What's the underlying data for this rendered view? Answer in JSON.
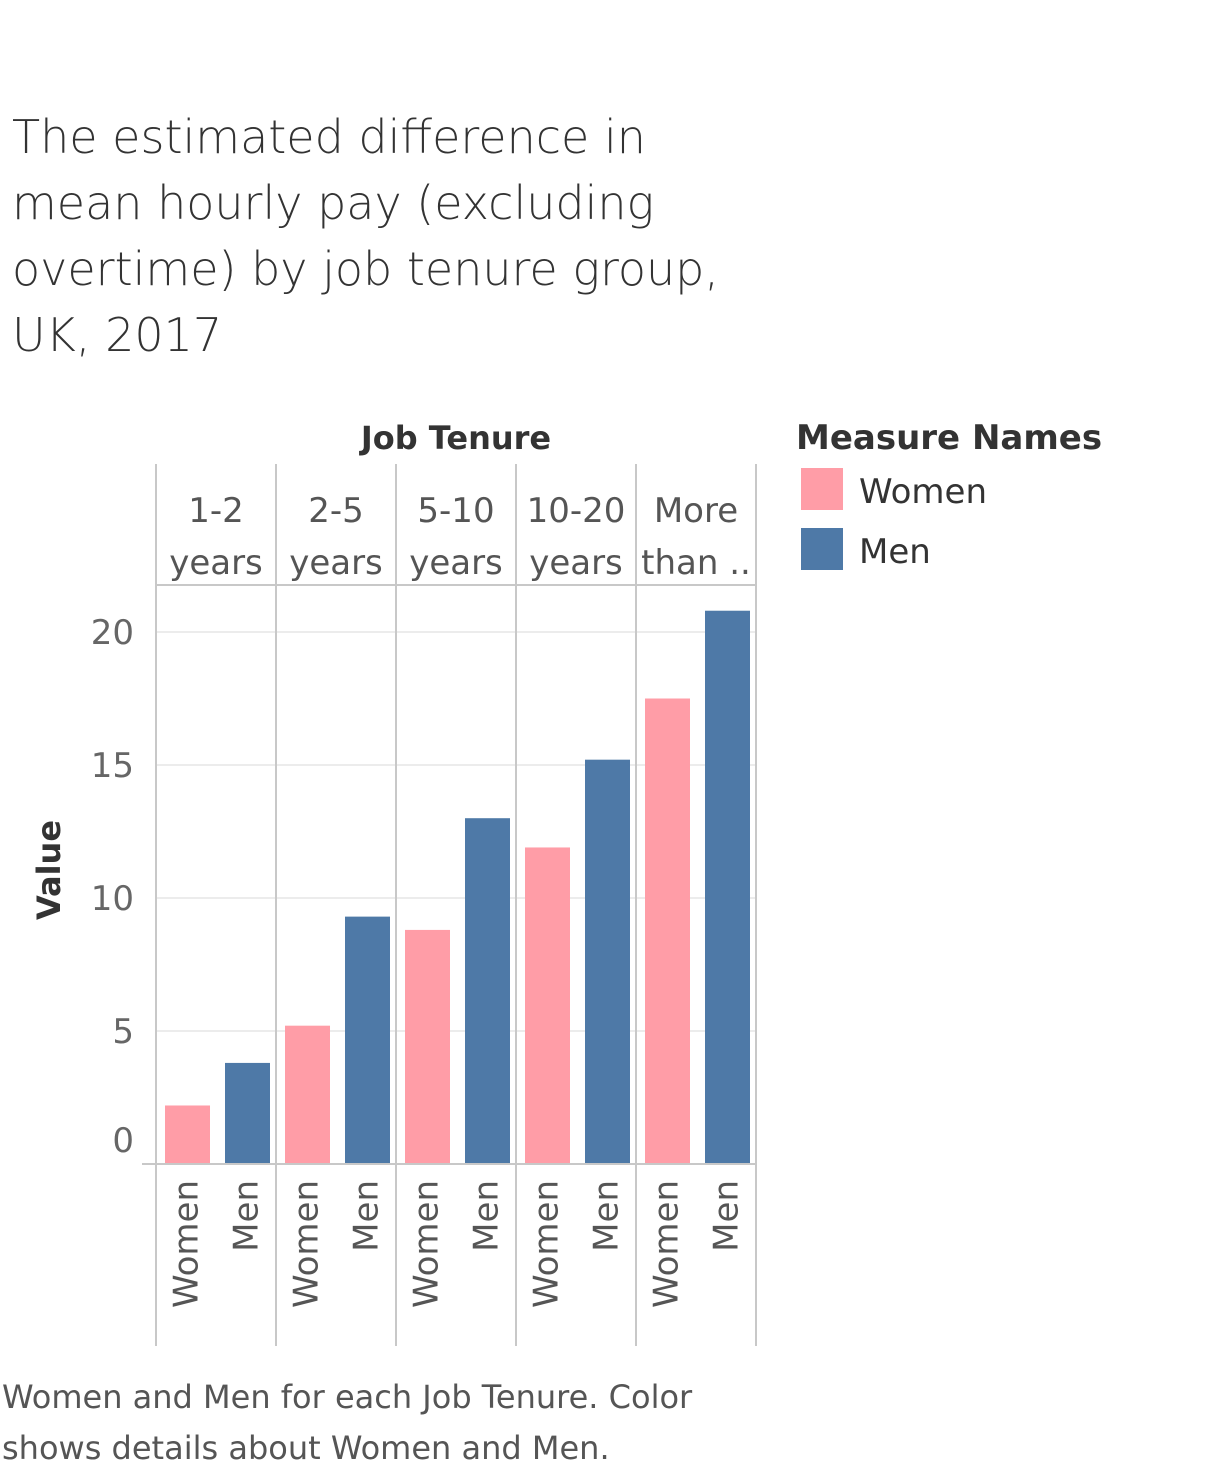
{
  "title": "The estimated difference in mean hourly pay (excluding overtime) by job tenure group, UK, 2017",
  "caption": "Women and Men for each Job Tenure.  Color shows details about Women and Men.",
  "legend": {
    "title": "Measure Names",
    "items": [
      {
        "label": "Women",
        "color": "#ff9da7"
      },
      {
        "label": "Men",
        "color": "#4e79a7"
      }
    ]
  },
  "chart_data": {
    "type": "bar",
    "column_header_title": "Job Tenure",
    "column_headers": [
      [
        "1-2",
        "years"
      ],
      [
        "2-5",
        "years"
      ],
      [
        "5-10",
        "years"
      ],
      [
        "10-20",
        "years"
      ],
      [
        "More",
        "than .."
      ]
    ],
    "categories": [
      "1-2 years",
      "2-5 years",
      "5-10 years",
      "10-20 years",
      "More than .."
    ],
    "series": [
      {
        "name": "Women",
        "color": "#ff9da7",
        "values": [
          2.2,
          5.2,
          8.8,
          11.9,
          17.5
        ]
      },
      {
        "name": "Men",
        "color": "#4e79a7",
        "values": [
          3.8,
          9.3,
          13.0,
          15.2,
          20.8
        ]
      }
    ],
    "ylabel": "Value",
    "yticks": [
      0,
      5,
      10,
      15,
      20
    ],
    "ylim": [
      0,
      22
    ],
    "grid": true,
    "legend_position": "right"
  }
}
